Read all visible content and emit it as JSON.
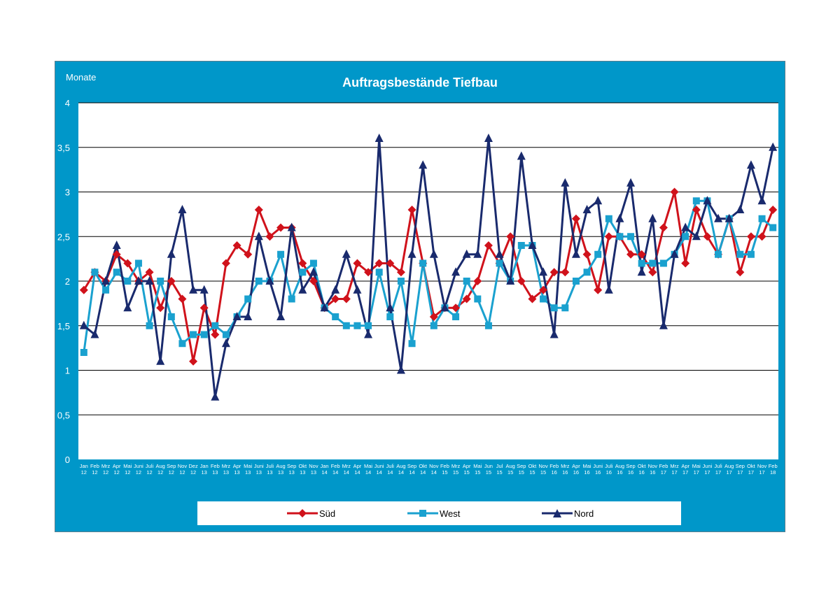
{
  "chart_data": {
    "type": "line",
    "title": "Auftragsbestände Tiefbau",
    "ylabel": "Monate",
    "ylim": [
      0,
      4
    ],
    "y_ticks": [
      "0",
      "0,5",
      "1",
      "1,5",
      "2",
      "2,5",
      "3",
      "3,5",
      "4"
    ],
    "grid": true,
    "legend_position": "bottom",
    "x_labels": [
      [
        "Jan",
        "12"
      ],
      [
        "Feb",
        "12"
      ],
      [
        "Mrz",
        "12"
      ],
      [
        "Apr",
        "12"
      ],
      [
        "Mai",
        "12"
      ],
      [
        "Juni",
        "12"
      ],
      [
        "Juli",
        "12"
      ],
      [
        "Aug",
        "12"
      ],
      [
        "Sep",
        "12"
      ],
      [
        "Nov",
        "12"
      ],
      [
        "Dez",
        "12"
      ],
      [
        "Jan",
        "13"
      ],
      [
        "Feb",
        "13"
      ],
      [
        "Mrz",
        "13"
      ],
      [
        "Apr",
        "13"
      ],
      [
        "Mai",
        "13"
      ],
      [
        "Juni",
        "13"
      ],
      [
        "Juli",
        "13"
      ],
      [
        "Aug",
        "13"
      ],
      [
        "Sep",
        "13"
      ],
      [
        "Okt",
        "13"
      ],
      [
        "Nov",
        "13"
      ],
      [
        "Jan",
        "14"
      ],
      [
        "Feb",
        "14"
      ],
      [
        "Mrz",
        "14"
      ],
      [
        "Apr",
        "14"
      ],
      [
        "Mai",
        "14"
      ],
      [
        "Juni",
        "14"
      ],
      [
        "Juli",
        "14"
      ],
      [
        "Aug",
        "14"
      ],
      [
        "Sep",
        "14"
      ],
      [
        "Okt",
        "14"
      ],
      [
        "Nov",
        "14"
      ],
      [
        "Feb",
        "15"
      ],
      [
        "Mrz",
        "15"
      ],
      [
        "Apr",
        "15"
      ],
      [
        "Mai",
        "15"
      ],
      [
        "Jun",
        "15"
      ],
      [
        "Jul",
        "15"
      ],
      [
        "Aug",
        "15"
      ],
      [
        "Sep",
        "15"
      ],
      [
        "Okt",
        "15"
      ],
      [
        "Nov",
        "15"
      ],
      [
        "Feb",
        "16"
      ],
      [
        "Mrz",
        "16"
      ],
      [
        "Apr",
        "16"
      ],
      [
        "Mai",
        "16"
      ],
      [
        "Juni",
        "16"
      ],
      [
        "Juli",
        "16"
      ],
      [
        "Aug",
        "16"
      ],
      [
        "Sep",
        "16"
      ],
      [
        "Okt",
        "16"
      ],
      [
        "Nov",
        "16"
      ],
      [
        "Feb",
        "17"
      ],
      [
        "Mrz",
        "17"
      ],
      [
        "Apr",
        "17"
      ],
      [
        "Mai",
        "17"
      ],
      [
        "Juni",
        "17"
      ],
      [
        "Juli",
        "17"
      ],
      [
        "Aug",
        "17"
      ],
      [
        "Sep",
        "17"
      ],
      [
        "Okt",
        "17"
      ],
      [
        "Nov",
        "17"
      ],
      [
        "Feb",
        "18"
      ]
    ],
    "series": [
      {
        "name": "Süd",
        "color": "#d0121b",
        "marker": "diamond",
        "values": [
          1.9,
          2.1,
          2.0,
          2.3,
          2.2,
          2.0,
          2.1,
          1.7,
          2.0,
          1.8,
          1.1,
          1.7,
          1.4,
          2.2,
          2.4,
          2.3,
          2.8,
          2.5,
          2.6,
          2.6,
          2.2,
          2.0,
          1.7,
          1.8,
          1.8,
          2.2,
          2.1,
          2.2,
          2.2,
          2.1,
          2.8,
          2.2,
          1.6,
          1.7,
          1.7,
          1.8,
          2.0,
          2.4,
          2.2,
          2.5,
          2.0,
          1.8,
          1.9,
          2.1,
          2.1,
          2.7,
          2.3,
          1.9,
          2.5,
          2.5,
          2.3,
          2.3,
          2.1,
          2.6,
          3.0,
          2.2,
          2.8,
          2.5,
          2.3,
          2.7,
          2.1,
          2.5,
          2.5,
          2.8
        ]
      },
      {
        "name": "West",
        "color": "#1aa1cf",
        "marker": "square",
        "values": [
          1.2,
          2.1,
          1.9,
          2.1,
          2.0,
          2.2,
          1.5,
          2.0,
          1.6,
          1.3,
          1.4,
          1.4,
          1.5,
          1.4,
          1.6,
          1.8,
          2.0,
          2.0,
          2.3,
          1.8,
          2.1,
          2.2,
          1.7,
          1.6,
          1.5,
          1.5,
          1.5,
          2.1,
          1.6,
          2.0,
          1.3,
          2.2,
          1.5,
          1.7,
          1.6,
          2.0,
          1.8,
          1.5,
          2.2,
          2.0,
          2.4,
          2.4,
          1.8,
          1.7,
          1.7,
          2.0,
          2.1,
          2.3,
          2.7,
          2.5,
          2.5,
          2.2,
          2.2,
          2.2,
          2.3,
          2.5,
          2.9,
          2.9,
          2.3,
          2.7,
          2.3,
          2.3,
          2.7,
          2.6
        ]
      },
      {
        "name": "Nord",
        "color": "#192a6d",
        "marker": "triangle",
        "values": [
          1.5,
          1.4,
          2.0,
          2.4,
          1.7,
          2.0,
          2.0,
          1.1,
          2.3,
          2.8,
          1.9,
          1.9,
          0.7,
          1.3,
          1.6,
          1.6,
          2.5,
          2.0,
          1.6,
          2.6,
          1.9,
          2.1,
          1.7,
          1.9,
          2.3,
          1.9,
          1.4,
          3.6,
          1.7,
          1.0,
          2.3,
          3.3,
          2.3,
          1.7,
          2.1,
          2.3,
          2.3,
          3.6,
          2.3,
          2.0,
          3.4,
          2.4,
          2.1,
          1.4,
          3.1,
          2.3,
          2.8,
          2.9,
          1.9,
          2.7,
          3.1,
          2.1,
          2.7,
          1.5,
          2.3,
          2.6,
          2.5,
          2.9,
          2.7,
          2.7,
          2.8,
          3.3,
          2.9,
          3.5
        ]
      }
    ]
  }
}
